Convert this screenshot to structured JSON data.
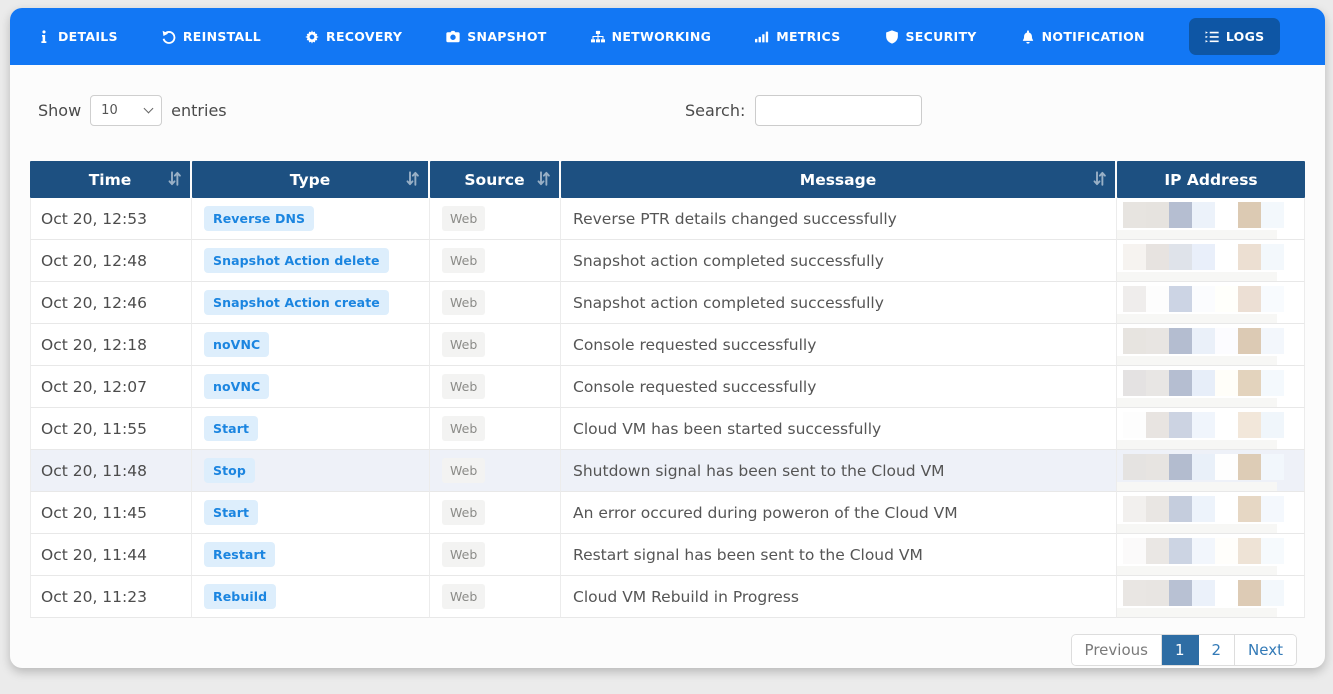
{
  "tabs": [
    {
      "id": "details",
      "label": "DETAILS",
      "icon": "info-icon",
      "active": false
    },
    {
      "id": "reinstall",
      "label": "REINSTALL",
      "icon": "rotate-left-icon",
      "active": false
    },
    {
      "id": "recovery",
      "label": "RECOVERY",
      "icon": "gear-icon",
      "active": false
    },
    {
      "id": "snapshot",
      "label": "SNAPSHOT",
      "icon": "camera-icon",
      "active": false
    },
    {
      "id": "networking",
      "label": "NETWORKING",
      "icon": "sitemap-icon",
      "active": false
    },
    {
      "id": "metrics",
      "label": "METRICS",
      "icon": "bar-chart-icon",
      "active": false
    },
    {
      "id": "security",
      "label": "SECURITY",
      "icon": "shield-icon",
      "active": false
    },
    {
      "id": "notification",
      "label": "NOTIFICATION",
      "icon": "bell-icon",
      "active": false
    },
    {
      "id": "logs",
      "label": "LOGS",
      "icon": "list-icon",
      "active": true
    }
  ],
  "controls": {
    "show_label": "Show",
    "page_size": "10",
    "entries_label": "entries",
    "search_label": "Search:",
    "search_value": ""
  },
  "table": {
    "columns": [
      {
        "key": "time",
        "label": "Time",
        "sortable": true
      },
      {
        "key": "type",
        "label": "Type",
        "sortable": true
      },
      {
        "key": "source",
        "label": "Source",
        "sortable": true
      },
      {
        "key": "message",
        "label": "Message",
        "sortable": true
      },
      {
        "key": "ip",
        "label": "IP Address",
        "sortable": false
      }
    ],
    "rows": [
      {
        "time": "Oct 20, 12:53",
        "type": "Reverse DNS",
        "source": "Web",
        "message": "Reverse PTR details changed successfully",
        "highlighted": false,
        "ip_blur": [
          "#e7e4e0",
          "#e6e3df",
          "#b5bed1",
          "#ecf2fa",
          "#ffffff",
          "#dccab3",
          "#f3f8fc"
        ]
      },
      {
        "time": "Oct 20, 12:48",
        "type": "Snapshot Action delete",
        "source": "Web",
        "message": "Snapshot action completed successfully",
        "highlighted": false,
        "ip_blur": [
          "#f6f3f0",
          "#e7e3e0",
          "#dfe3ea",
          "#e9effa",
          "#ffffff",
          "#ecdfd2",
          "#f3f8fc"
        ]
      },
      {
        "time": "Oct 20, 12:46",
        "type": "Snapshot Action create",
        "source": "Web",
        "message": "Snapshot action completed successfully",
        "highlighted": false,
        "ip_blur": [
          "#efedec",
          "#fdfdfd",
          "#ccd4e4",
          "#fbfcfe",
          "#fffffb",
          "#ecdfd4",
          "#f8fbfe"
        ]
      },
      {
        "time": "Oct 20, 12:18",
        "type": "noVNC",
        "source": "Web",
        "message": "Console requested successfully",
        "highlighted": false,
        "ip_blur": [
          "#e7e4e0",
          "#e8e5e2",
          "#b4bdd0",
          "#eaf0f9",
          "#fcfcff",
          "#dccab4",
          "#f3f7fc"
        ]
      },
      {
        "time": "Oct 20, 12:07",
        "type": "noVNC",
        "source": "Web",
        "message": "Console requested successfully",
        "highlighted": false,
        "ip_blur": [
          "#e4e2e2",
          "#e8e6e4",
          "#b5bed1",
          "#e7eef9",
          "#fffef9",
          "#e3d3bd",
          "#f4f9fd"
        ]
      },
      {
        "time": "Oct 20, 11:55",
        "type": "Start",
        "source": "Web",
        "message": "Cloud VM has been started successfully",
        "highlighted": false,
        "ip_blur": [
          "#fdfdfd",
          "#e8e4e1",
          "#ccd3e2",
          "#f0f5fc",
          "#ffffff",
          "#f2e7da",
          "#f0f6fb"
        ]
      },
      {
        "time": "Oct 20, 11:48",
        "type": "Stop",
        "source": "Web",
        "message": "Shutdown signal has been sent to the Cloud VM",
        "highlighted": true,
        "ip_blur": [
          "#e5e3e1",
          "#e7e4e1",
          "#b3bccf",
          "#e9f0f9",
          "#fefefe",
          "#ddccb6",
          "#f2f7fc"
        ]
      },
      {
        "time": "Oct 20, 11:45",
        "type": "Start",
        "source": "Web",
        "message": "An error occured during poweron of the Cloud VM",
        "highlighted": false,
        "ip_blur": [
          "#f2f0ee",
          "#e9e6e3",
          "#c5cddd",
          "#edf3fb",
          "#ffffff",
          "#e6d7c4",
          "#f4f8fd"
        ]
      },
      {
        "time": "Oct 20, 11:44",
        "type": "Restart",
        "source": "Web",
        "message": "Restart signal has been sent to the Cloud VM",
        "highlighted": false,
        "ip_blur": [
          "#fbfafa",
          "#eae7e4",
          "#ccd4e3",
          "#f2f6fc",
          "#fffefb",
          "#eee3d6",
          "#f6fafd"
        ]
      },
      {
        "time": "Oct 20, 11:23",
        "type": "Rebuild",
        "source": "Web",
        "message": "Cloud VM Rebuild in Progress",
        "highlighted": false,
        "ip_blur": [
          "#e9e6e3",
          "#e8e5e2",
          "#b8c1d3",
          "#ebf1fa",
          "#ffffff",
          "#ddcbb5",
          "#f3f8fc"
        ]
      }
    ]
  },
  "pagination": {
    "items": [
      {
        "label": "Previous",
        "state": "disabled"
      },
      {
        "label": "1",
        "state": "active"
      },
      {
        "label": "2",
        "state": "normal"
      },
      {
        "label": "Next",
        "state": "normal"
      }
    ]
  },
  "colors": {
    "nav_bg": "#1277f4",
    "active_tab_bg": "#0e56a5",
    "table_header_bg": "#1d5081",
    "type_badge_bg": "#ddeefc",
    "type_badge_text": "#1b85e0",
    "source_badge_bg": "#f3f3f2",
    "source_badge_text": "#8b8b88",
    "row_highlight": "#eef1f8",
    "pagination_active_bg": "#2e6da4",
    "link_blue": "#337ab7"
  }
}
